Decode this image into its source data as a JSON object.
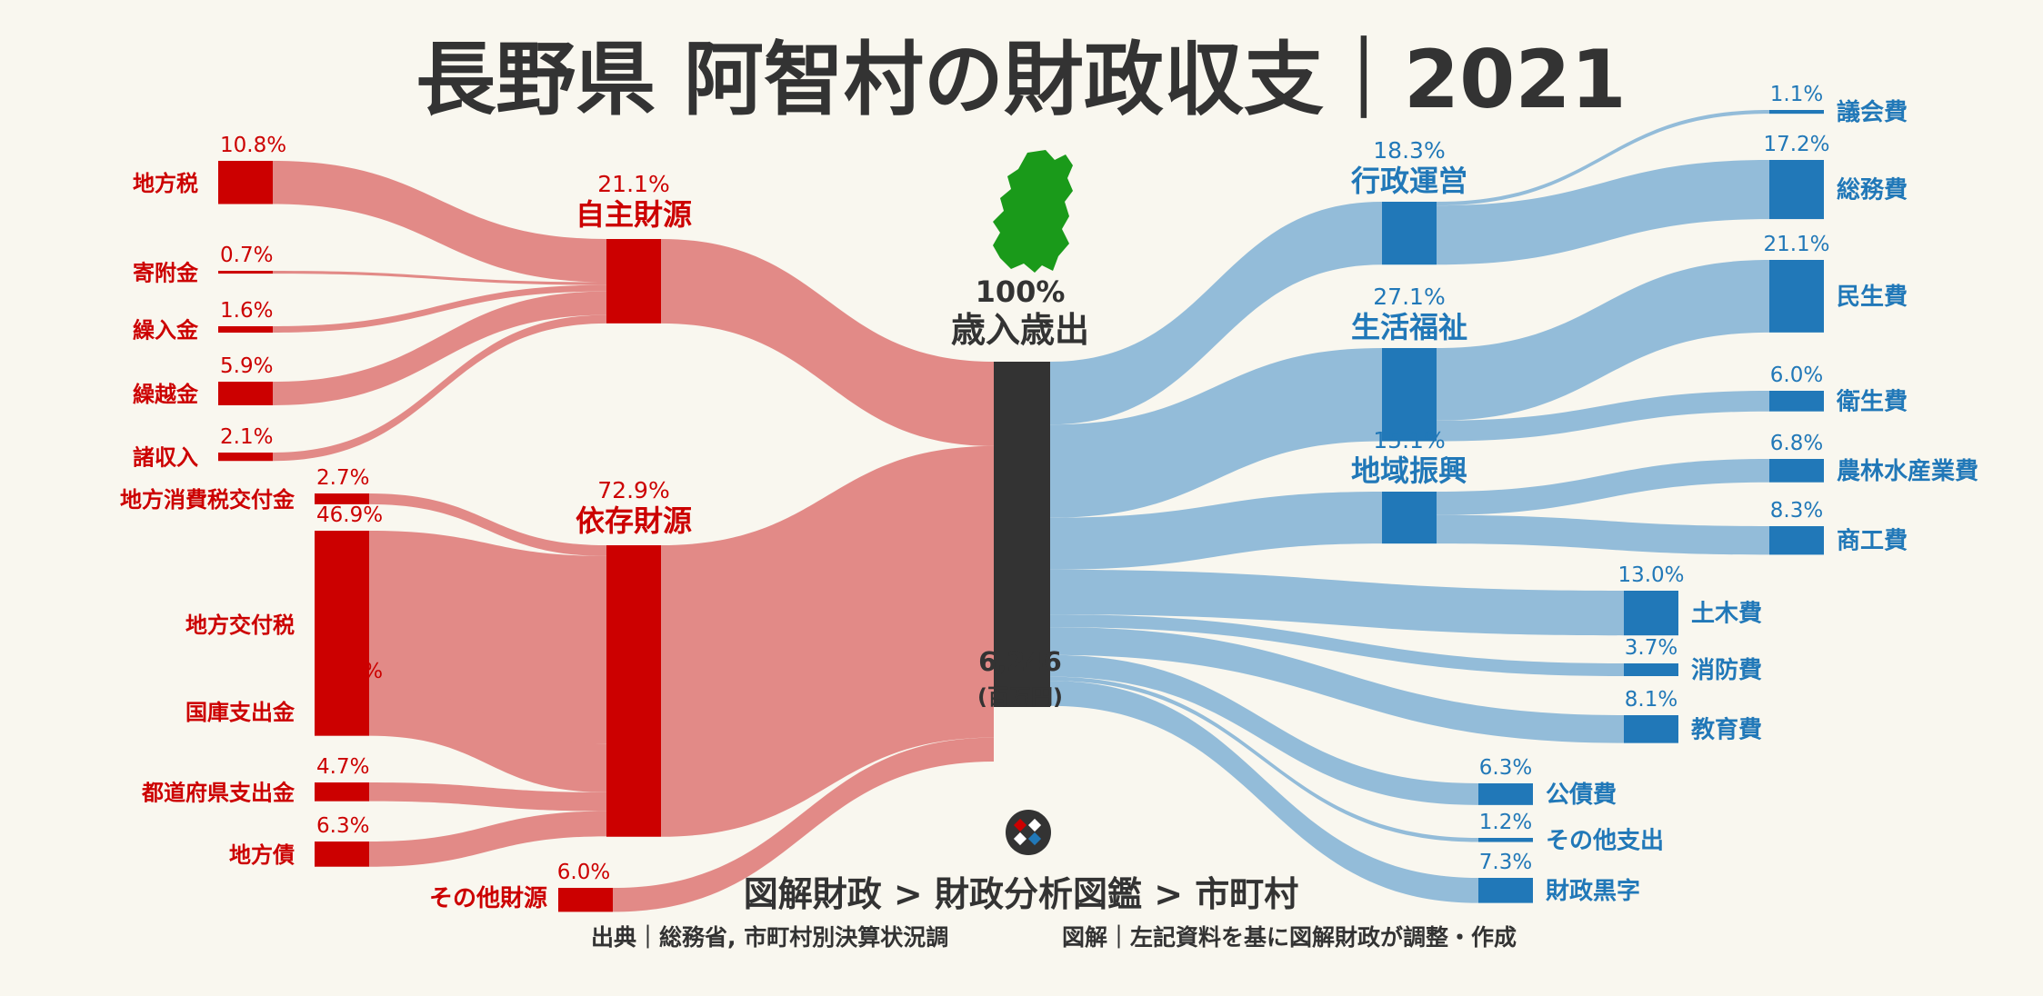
{
  "title": "長野県 阿智村の財政収支｜2021",
  "colors": {
    "revenue": "#cc0000",
    "revenue_flow": "#e28a87",
    "expense": "#2178b8",
    "expense_flow": "#93bcd9",
    "center": "#333333",
    "map": "#1a9a1a",
    "text_dark": "#333333"
  },
  "center": {
    "pct": "100%",
    "label": "歳入歳出",
    "total": "6,246",
    "unit": "(百万円)"
  },
  "revenue_groups": [
    {
      "id": "jishu",
      "label": "自主財源",
      "pct": "21.1%",
      "value": 21.1
    },
    {
      "id": "izon",
      "label": "依存財源",
      "pct": "72.9%",
      "value": 72.9
    },
    {
      "id": "other",
      "label": "その他財源",
      "pct": "6.0%",
      "value": 6.0
    }
  ],
  "revenue_items": [
    {
      "label": "地方税",
      "pct": "10.8%",
      "value": 10.8,
      "group": "jishu"
    },
    {
      "label": "寄附金",
      "pct": "0.7%",
      "value": 0.7,
      "group": "jishu"
    },
    {
      "label": "繰入金",
      "pct": "1.6%",
      "value": 1.6,
      "group": "jishu"
    },
    {
      "label": "繰越金",
      "pct": "5.9%",
      "value": 5.9,
      "group": "jishu"
    },
    {
      "label": "諸収入",
      "pct": "2.1%",
      "value": 2.1,
      "group": "jishu"
    },
    {
      "label": "地方消費税交付金",
      "pct": "2.7%",
      "value": 2.7,
      "group": "izon"
    },
    {
      "label": "地方交付税",
      "pct": "46.9%",
      "value": 46.9,
      "group": "izon"
    },
    {
      "label": "国庫支出金",
      "pct": "12.2%",
      "value": 12.2,
      "group": "izon"
    },
    {
      "label": "都道府県支出金",
      "pct": "4.7%",
      "value": 4.7,
      "group": "izon"
    },
    {
      "label": "地方債",
      "pct": "6.3%",
      "value": 6.3,
      "group": "izon"
    }
  ],
  "expense_groups": [
    {
      "id": "gyosei",
      "label": "行政運営",
      "pct": "18.3%",
      "value": 18.3
    },
    {
      "id": "seikatsu",
      "label": "生活福祉",
      "pct": "27.1%",
      "value": 27.1
    },
    {
      "id": "chiiki",
      "label": "地域振興",
      "pct": "15.1%",
      "value": 15.1
    }
  ],
  "expense_items": [
    {
      "label": "議会費",
      "pct": "1.1%",
      "value": 1.1,
      "group": "gyosei"
    },
    {
      "label": "総務費",
      "pct": "17.2%",
      "value": 17.2,
      "group": "gyosei"
    },
    {
      "label": "民生費",
      "pct": "21.1%",
      "value": 21.1,
      "group": "seikatsu"
    },
    {
      "label": "衛生費",
      "pct": "6.0%",
      "value": 6.0,
      "group": "seikatsu"
    },
    {
      "label": "農林水産業費",
      "pct": "6.8%",
      "value": 6.8,
      "group": "chiiki"
    },
    {
      "label": "商工費",
      "pct": "8.3%",
      "value": 8.3,
      "group": "chiiki"
    },
    {
      "label": "土木費",
      "pct": "13.0%",
      "value": 13.0
    },
    {
      "label": "消防費",
      "pct": "3.7%",
      "value": 3.7
    },
    {
      "label": "教育費",
      "pct": "8.1%",
      "value": 8.1
    },
    {
      "label": "公債費",
      "pct": "6.3%",
      "value": 6.3
    },
    {
      "label": "その他支出",
      "pct": "1.2%",
      "value": 1.2
    },
    {
      "label": "財政黒字",
      "pct": "7.3%",
      "value": 7.3
    }
  ],
  "footer": {
    "brand_path": "図解財政 > 財政分析図鑑 > 市町村",
    "source": "出典｜総務省, 市町村別決算状況調",
    "credit": "図解｜左記資料を基に図解財政が調整・作成"
  },
  "icons": {
    "map": "nagano-prefecture-map-icon",
    "logo": "zukai-zaisei-logo-icon"
  }
}
